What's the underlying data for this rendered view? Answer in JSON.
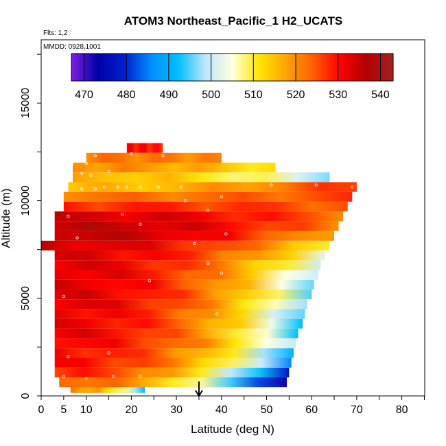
{
  "chart_data": {
    "type": "heatmap",
    "title": "ATOM3 Northeast_Pacific_1 H2_UCATS",
    "annotations": [
      "Flts: 1,2",
      "MMDD: 0928,1001"
    ],
    "xlabel": "Latitude (deg N)",
    "ylabel": "Altitude (m)",
    "xlim": [
      0,
      85
    ],
    "ylim": [
      0,
      18000
    ],
    "x_ticks": [
      0,
      5,
      10,
      20,
      30,
      40,
      50,
      60,
      70,
      80
    ],
    "y_ticks": [
      0,
      5000,
      10000,
      15000
    ],
    "grid": false,
    "colorbar": {
      "range": [
        467,
        543
      ],
      "ticks": [
        470,
        480,
        490,
        500,
        510,
        520,
        530,
        540
      ],
      "placement": "top-inside",
      "palette": [
        "#7a1fe0",
        "#0000a8",
        "#0020d0",
        "#0090ff",
        "#00c0ff",
        "#bfe6ff",
        "#ffffe0",
        "#ffe600",
        "#ffa500",
        "#ff6000",
        "#ff0000",
        "#b40000",
        "#a02020"
      ]
    },
    "arrow_marker": {
      "latitude": 35,
      "direction": "down"
    },
    "bands": [
      {
        "alt": 400,
        "x0": 6.5,
        "x1": 23,
        "v0": 520,
        "v1": 492
      },
      {
        "alt": 700,
        "x0": 4,
        "x1": 54.5,
        "v0": 524,
        "v1": 470
      },
      {
        "alt": 1200,
        "x0": 3,
        "x1": 55,
        "v0": 528,
        "v1": 478
      },
      {
        "alt": 1700,
        "x0": 3,
        "x1": 55.5,
        "v0": 530,
        "v1": 488
      },
      {
        "alt": 2200,
        "x0": 3,
        "x1": 56,
        "v0": 530,
        "v1": 490
      },
      {
        "alt": 2700,
        "x0": 3,
        "x1": 56.5,
        "v0": 531,
        "v1": 497
      },
      {
        "alt": 3200,
        "x0": 3,
        "x1": 57,
        "v0": 532,
        "v1": 493
      },
      {
        "alt": 3700,
        "x0": 3,
        "x1": 58,
        "v0": 532,
        "v1": 494
      },
      {
        "alt": 4200,
        "x0": 3,
        "x1": 58.5,
        "v0": 532,
        "v1": 494
      },
      {
        "alt": 4700,
        "x0": 3,
        "x1": 59,
        "v0": 533,
        "v1": 496
      },
      {
        "alt": 5200,
        "x0": 3,
        "x1": 60,
        "v0": 533,
        "v1": 497
      },
      {
        "alt": 5700,
        "x0": 3,
        "x1": 60.5,
        "v0": 533,
        "v1": 497
      },
      {
        "alt": 6200,
        "x0": 3,
        "x1": 61.5,
        "v0": 533,
        "v1": 498
      },
      {
        "alt": 6700,
        "x0": 3,
        "x1": 62,
        "v0": 533,
        "v1": 500
      },
      {
        "alt": 7200,
        "x0": 3,
        "x1": 63,
        "v0": 533,
        "v1": 505
      },
      {
        "alt": 7700,
        "x0": 0,
        "x1": 64,
        "v0": 534,
        "v1": 510
      },
      {
        "alt": 8200,
        "x0": 3,
        "x1": 65,
        "v0": 536,
        "v1": 516
      },
      {
        "alt": 8700,
        "x0": 3,
        "x1": 66,
        "v0": 536,
        "v1": 520
      },
      {
        "alt": 9200,
        "x0": 3,
        "x1": 67,
        "v0": 534,
        "v1": 522
      },
      {
        "alt": 9700,
        "x0": 5,
        "x1": 68,
        "v0": 528,
        "v1": 524
      },
      {
        "alt": 10200,
        "x0": 5,
        "x1": 69,
        "v0": 522,
        "v1": 526
      },
      {
        "alt": 10700,
        "x0": 6,
        "x1": 70,
        "v0": 515,
        "v1": 528
      },
      {
        "alt": 11200,
        "x0": 7,
        "x1": 64,
        "v0": 516,
        "v1": 498
      },
      {
        "alt": 11700,
        "x0": 7,
        "x1": 52,
        "v0": 520,
        "v1": 510
      },
      {
        "alt": 12200,
        "x0": 10,
        "x1": 40,
        "v0": 522,
        "v1": 520
      },
      {
        "alt": 12700,
        "x0": 19,
        "x1": 27,
        "v0": 530,
        "v1": 528
      }
    ],
    "sample_points": [
      [
        6.5,
        100
      ],
      [
        5,
        1000
      ],
      [
        10,
        900
      ],
      [
        16,
        1000
      ],
      [
        22,
        1000
      ],
      [
        6,
        2000
      ],
      [
        15,
        2200
      ],
      [
        5,
        5100
      ],
      [
        24,
        5900
      ],
      [
        39,
        4200
      ],
      [
        48,
        3400
      ],
      [
        37,
        6800
      ],
      [
        40,
        6300
      ],
      [
        8,
        8100
      ],
      [
        22,
        8800
      ],
      [
        34,
        7800
      ],
      [
        41,
        8300
      ],
      [
        37,
        9500
      ],
      [
        40,
        10200
      ],
      [
        6,
        9200
      ],
      [
        9,
        10600
      ],
      [
        12,
        10600
      ],
      [
        14,
        10700
      ],
      [
        17,
        10700
      ],
      [
        19,
        10700
      ],
      [
        22,
        10700
      ],
      [
        26,
        10700
      ],
      [
        31,
        10700
      ],
      [
        51,
        10800
      ],
      [
        61,
        10800
      ],
      [
        69,
        10700
      ],
      [
        9,
        11400
      ],
      [
        11,
        11300
      ],
      [
        15,
        11500
      ],
      [
        7,
        11900
      ],
      [
        10,
        11900
      ],
      [
        12,
        12300
      ],
      [
        20,
        12400
      ],
      [
        27,
        12300
      ],
      [
        32,
        10000
      ],
      [
        18,
        9300
      ]
    ]
  }
}
